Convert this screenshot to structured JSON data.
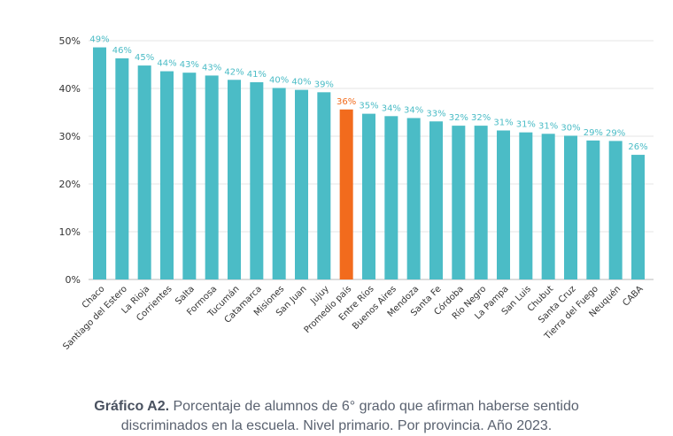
{
  "chart_data": {
    "type": "bar",
    "title": "",
    "xlabel": "",
    "ylabel": "",
    "ylim": [
      0,
      50
    ],
    "yticks": [
      0,
      10,
      20,
      30,
      40,
      50
    ],
    "ytick_labels": [
      "0%",
      "10%",
      "20%",
      "30%",
      "40%",
      "50%"
    ],
    "grid": true,
    "categories": [
      "Chaco",
      "Santiago del Estero",
      "La Rioja",
      "Corrientes",
      "Salta",
      "Formosa",
      "Tucumán",
      "Catamarca",
      "Misiones",
      "San Juan",
      "Jujuy",
      "Promedio país",
      "Entre Ríos",
      "Buenos Aires",
      "Mendoza",
      "Santa Fe",
      "Córdoba",
      "Río Negro",
      "La Pampa",
      "San Luis",
      "Chubut",
      "Santa Cruz",
      "Tierra del Fuego",
      "Neuquén",
      "CABA"
    ],
    "values": [
      48.6,
      46.3,
      44.8,
      43.6,
      43.3,
      42.7,
      41.8,
      41.3,
      40.1,
      39.7,
      39.2,
      35.6,
      34.7,
      34.2,
      33.8,
      33.1,
      32.2,
      32.2,
      31.2,
      30.8,
      30.5,
      30.1,
      29.1,
      29.0,
      26.1
    ],
    "data_labels": [
      "49%",
      "46%",
      "45%",
      "44%",
      "43%",
      "43%",
      "42%",
      "41%",
      "40%",
      "40%",
      "39%",
      "36%",
      "35%",
      "34%",
      "34%",
      "33%",
      "32%",
      "32%",
      "31%",
      "31%",
      "31%",
      "30%",
      "29%",
      "29%",
      "26%"
    ],
    "highlight_index": 11,
    "bar_color": "#4bbcc6",
    "highlight_color": "#f26b1d",
    "label_color": "#4bbcc6"
  },
  "caption": {
    "label": "Gráfico A2.",
    "text": "Porcentaje de alumnos de 6° grado que afirman haberse sentido discriminados en la escuela. Nivel primario. Por provincia. Año 2023."
  }
}
